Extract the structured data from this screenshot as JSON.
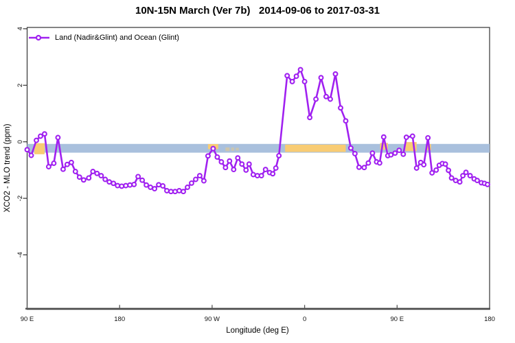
{
  "window": {
    "title": "10N-15N March (Ver 7b)   2014-09-06 to 2017-03-31"
  },
  "chart_data": {
    "type": "line",
    "title": "10N-15N March (Ver 7b)   2014-09-06 to 2017-03-31",
    "xlabel": "Longitude (deg E)",
    "ylabel": "XCO2 - MLO trend (ppm)",
    "grid": false,
    "legend": {
      "label": "Land (Nadir&Glint) and Ocean (Glint)",
      "position": "top-left",
      "symbol": "open-circle-on-line"
    },
    "x_axis": {
      "range_deg_east_continuous": [
        90,
        540
      ],
      "ticks": [
        {
          "lon": 90,
          "label": "90 E"
        },
        {
          "lon": 180,
          "label": "180"
        },
        {
          "lon": 270,
          "label": "90 W"
        },
        {
          "lon": 360,
          "label": "0"
        },
        {
          "lon": 450,
          "label": "90 E"
        },
        {
          "lon": 540,
          "label": "180"
        }
      ]
    },
    "y_axis": {
      "range": [
        -5.9,
        4.05
      ],
      "ticks": [
        {
          "value": 4,
          "label": "4"
        },
        {
          "value": 2,
          "label": "2"
        },
        {
          "value": 0,
          "label": "0"
        },
        {
          "value": -2,
          "label": "-2"
        },
        {
          "value": -4,
          "label": "-4"
        }
      ]
    },
    "colors": {
      "series": "#A020F0",
      "ocean_band": "#A9C0DD",
      "land_band": "#F8CC74",
      "axis": "#555555",
      "box": "#333333",
      "text": "#111111"
    },
    "bands": {
      "ocean_band": {
        "lon_range": [
          90,
          540
        ],
        "value_range": [
          -0.385,
          -0.075
        ]
      },
      "land_segments": [
        {
          "lon_range": [
            97,
            107
          ],
          "value_range": [
            -0.44,
            -0.05
          ],
          "opacity": 1
        },
        {
          "lon_range": [
            266,
            276
          ],
          "value_range": [
            -0.26,
            -0.08
          ],
          "opacity": 1
        },
        {
          "lon_range": [
            283,
            287
          ],
          "value_range": [
            -0.33,
            -0.2
          ],
          "opacity": 0.45
        },
        {
          "lon_range": [
            288.5,
            291.5
          ],
          "value_range": [
            -0.32,
            -0.2
          ],
          "opacity": 0.4
        },
        {
          "lon_range": [
            293,
            296
          ],
          "value_range": [
            -0.31,
            -0.21
          ],
          "opacity": 0.4
        },
        {
          "lon_range": [
            341,
            400
          ],
          "value_range": [
            -0.36,
            -0.1
          ],
          "opacity": 1
        },
        {
          "lon_range": [
            433.5,
            441
          ],
          "value_range": [
            -0.28,
            -0.04
          ],
          "opacity": 1
        },
        {
          "lon_range": [
            458,
            469
          ],
          "value_range": [
            -0.33,
            -0.01
          ],
          "opacity": 1
        },
        {
          "lon_range": [
            479,
            483
          ],
          "value_range": [
            -0.3,
            -0.08
          ],
          "opacity": 1
        }
      ]
    },
    "series": [
      {
        "name": "Land (Nadir&Glint) and Ocean (Glint)",
        "color": "#A020F0",
        "marker": "open-circle",
        "points": [
          [
            90,
            -0.28
          ],
          [
            94,
            -0.48
          ],
          [
            99,
            0.05
          ],
          [
            103,
            0.2
          ],
          [
            107,
            0.28
          ],
          [
            111,
            -0.88
          ],
          [
            116,
            -0.76
          ],
          [
            120,
            0.15
          ],
          [
            125,
            -0.97
          ],
          [
            129,
            -0.8
          ],
          [
            133,
            -0.73
          ],
          [
            137,
            -1.05
          ],
          [
            141,
            -1.25
          ],
          [
            145,
            -1.35
          ],
          [
            150,
            -1.28
          ],
          [
            154,
            -1.05
          ],
          [
            158,
            -1.12
          ],
          [
            162,
            -1.2
          ],
          [
            166,
            -1.33
          ],
          [
            170,
            -1.42
          ],
          [
            174,
            -1.47
          ],
          [
            178,
            -1.55
          ],
          [
            182,
            -1.57
          ],
          [
            186,
            -1.55
          ],
          [
            190,
            -1.53
          ],
          [
            194,
            -1.51
          ],
          [
            198,
            -1.23
          ],
          [
            202,
            -1.36
          ],
          [
            206,
            -1.53
          ],
          [
            210,
            -1.61
          ],
          [
            214,
            -1.66
          ],
          [
            218,
            -1.52
          ],
          [
            222,
            -1.56
          ],
          [
            226,
            -1.73
          ],
          [
            230,
            -1.76
          ],
          [
            234,
            -1.76
          ],
          [
            238,
            -1.73
          ],
          [
            242,
            -1.76
          ],
          [
            246,
            -1.61
          ],
          [
            250,
            -1.46
          ],
          [
            254,
            -1.33
          ],
          [
            258,
            -1.2
          ],
          [
            262,
            -1.38
          ],
          [
            266,
            -0.5
          ],
          [
            271,
            -0.24
          ],
          [
            275,
            -0.54
          ],
          [
            279,
            -0.71
          ],
          [
            283,
            -0.91
          ],
          [
            287,
            -0.68
          ],
          [
            291,
            -0.98
          ],
          [
            295,
            -0.57
          ],
          [
            299,
            -0.79
          ],
          [
            303,
            -1.0
          ],
          [
            306,
            -0.79
          ],
          [
            310,
            -1.16
          ],
          [
            314,
            -1.2
          ],
          [
            318,
            -1.2
          ],
          [
            322,
            -0.98
          ],
          [
            326,
            -1.09
          ],
          [
            329,
            -1.13
          ],
          [
            332,
            -0.93
          ],
          [
            335,
            -0.49
          ],
          [
            343,
            2.34
          ],
          [
            348,
            2.13
          ],
          [
            352,
            2.32
          ],
          [
            356,
            2.55
          ],
          [
            360,
            2.13
          ],
          [
            365,
            0.86
          ],
          [
            371,
            1.51
          ],
          [
            376,
            2.27
          ],
          [
            381,
            1.6
          ],
          [
            385,
            1.51
          ],
          [
            390,
            2.4
          ],
          [
            395,
            1.2
          ],
          [
            400,
            0.74
          ],
          [
            405,
            -0.22
          ],
          [
            409,
            -0.42
          ],
          [
            413,
            -0.9
          ],
          [
            418,
            -0.91
          ],
          [
            422,
            -0.75
          ],
          [
            426,
            -0.4
          ],
          [
            430,
            -0.71
          ],
          [
            433,
            -0.75
          ],
          [
            437,
            0.17
          ],
          [
            441,
            -0.49
          ],
          [
            444,
            -0.46
          ],
          [
            448,
            -0.4
          ],
          [
            452,
            -0.3
          ],
          [
            456,
            -0.44
          ],
          [
            459,
            0.16
          ],
          [
            465,
            0.2
          ],
          [
            469,
            -0.93
          ],
          [
            473,
            -0.73
          ],
          [
            476,
            -0.81
          ],
          [
            480,
            0.14
          ],
          [
            484,
            -1.1
          ],
          [
            488,
            -1.0
          ],
          [
            491,
            -0.83
          ],
          [
            494,
            -0.77
          ],
          [
            497,
            -0.79
          ],
          [
            500,
            -1.01
          ],
          [
            503,
            -1.28
          ],
          [
            507,
            -1.37
          ],
          [
            511,
            -1.42
          ],
          [
            514,
            -1.2
          ],
          [
            517,
            -1.08
          ],
          [
            521,
            -1.2
          ],
          [
            525,
            -1.31
          ],
          [
            528,
            -1.37
          ],
          [
            532,
            -1.45
          ],
          [
            535,
            -1.47
          ],
          [
            538,
            -1.51
          ]
        ]
      }
    ]
  }
}
